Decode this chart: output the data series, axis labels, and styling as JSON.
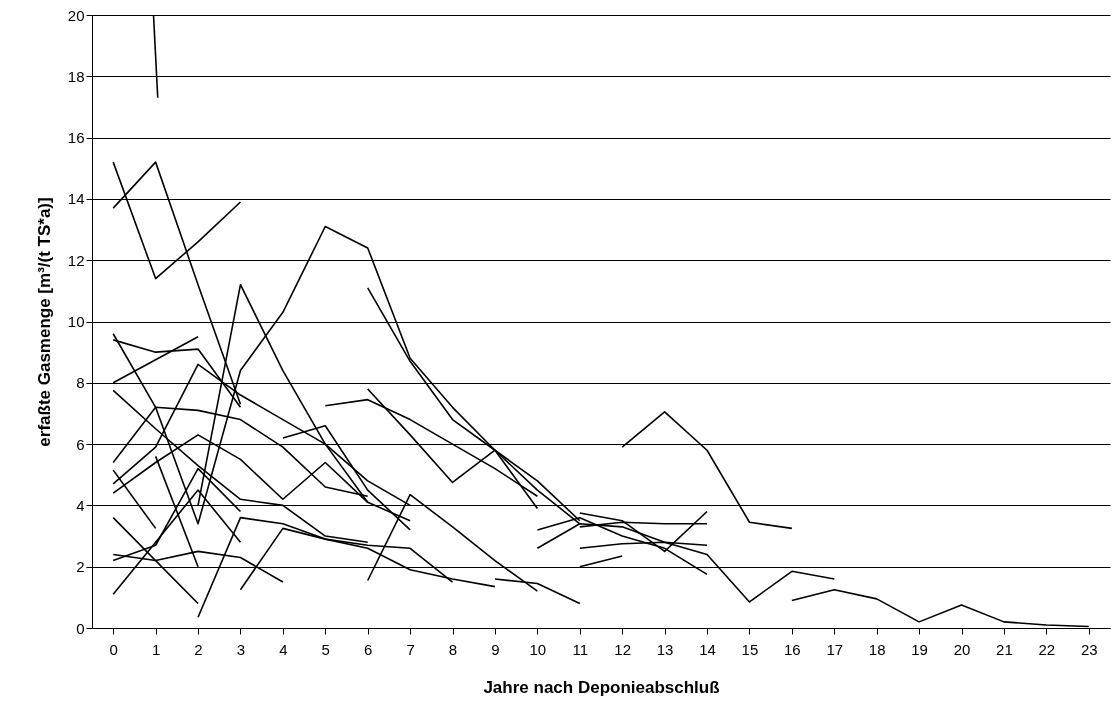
{
  "chart_data": {
    "type": "line",
    "xlabel": "Jahre nach Deponieabschluß",
    "ylabel": "erfaßte Gasmenge [m³/(t TS*a)]",
    "xlim": [
      -0.5,
      23.5
    ],
    "xticks": [
      0,
      1,
      2,
      3,
      4,
      5,
      6,
      7,
      8,
      9,
      10,
      11,
      12,
      13,
      14,
      15,
      16,
      17,
      18,
      19,
      20,
      21,
      22,
      23
    ],
    "ylim": [
      0,
      20
    ],
    "yticks": [
      0,
      2,
      4,
      6,
      8,
      10,
      12,
      14,
      16,
      18,
      20
    ],
    "grid": "y",
    "marker": "none",
    "line_style": "solid",
    "series": [
      {
        "color": "#000000",
        "x": [
          0.95,
          1.05
        ],
        "values": [
          20,
          17.3
        ]
      },
      {
        "color": "#000000",
        "x": [
          0,
          1,
          2,
          3
        ],
        "values": [
          15.2,
          11.4,
          12.6,
          13.9
        ]
      },
      {
        "color": "#000000",
        "x": [
          0,
          1,
          2,
          3
        ],
        "values": [
          13.7,
          15.2,
          11.2,
          7.3
        ]
      },
      {
        "color": "#000000",
        "x": [
          0,
          1,
          2,
          3,
          4,
          5,
          6,
          7,
          8,
          9,
          10,
          11
        ],
        "values": [
          9.6,
          7.2,
          3.4,
          8.4,
          10.3,
          13.1,
          12.4,
          8.8,
          7.2,
          5.8,
          4.5,
          3.4
        ]
      },
      {
        "color": "#000000",
        "x": [
          0,
          1,
          2,
          3
        ],
        "values": [
          9.4,
          9.0,
          9.1,
          7.2
        ]
      },
      {
        "color": "#000000",
        "x": [
          0,
          1,
          2
        ],
        "values": [
          8.0,
          8.75,
          9.5
        ]
      },
      {
        "color": "#000000",
        "x": [
          0,
          1,
          2,
          3,
          4,
          5,
          6
        ],
        "values": [
          7.75,
          6.5,
          5.3,
          4.2,
          4.0,
          3.0,
          2.8
        ]
      },
      {
        "color": "#000000",
        "x": [
          0,
          1,
          2,
          3,
          4,
          5,
          6
        ],
        "values": [
          5.4,
          7.2,
          7.1,
          6.8,
          5.9,
          4.6,
          4.3
        ]
      },
      {
        "color": "#000000",
        "x": [
          0,
          1,
          2,
          3,
          4,
          5,
          6,
          7
        ],
        "values": [
          4.7,
          5.9,
          8.6,
          7.6,
          6.8,
          6.0,
          4.8,
          4.0
        ]
      },
      {
        "color": "#000000",
        "x": [
          0,
          1,
          2,
          3,
          4,
          5,
          6,
          7
        ],
        "values": [
          4.4,
          5.4,
          6.3,
          5.5,
          4.2,
          5.4,
          4.1,
          3.5
        ]
      },
      {
        "color": "#000000",
        "x": [
          0,
          1
        ],
        "values": [
          5.15,
          3.25
        ]
      },
      {
        "color": "#000000",
        "x": [
          0,
          1,
          2,
          3,
          4
        ],
        "values": [
          2.4,
          2.2,
          2.5,
          2.3,
          1.5
        ]
      },
      {
        "color": "#000000",
        "x": [
          0,
          1,
          2,
          3
        ],
        "values": [
          2.2,
          2.7,
          5.2,
          3.8
        ]
      },
      {
        "color": "#000000",
        "x": [
          0,
          1,
          2,
          3
        ],
        "values": [
          1.1,
          2.8,
          4.5,
          2.8
        ]
      },
      {
        "color": "#000000",
        "x": [
          0,
          1,
          2
        ],
        "values": [
          3.6,
          2.2,
          0.8
        ]
      },
      {
        "color": "#000000",
        "x": [
          1,
          2
        ],
        "values": [
          5.6,
          2.0
        ]
      },
      {
        "color": "#000000",
        "x": [
          2,
          3,
          4,
          5,
          6,
          7,
          8
        ],
        "values": [
          0.35,
          3.6,
          3.4,
          2.9,
          2.7,
          2.6,
          1.5
        ]
      },
      {
        "color": "#000000",
        "x": [
          3,
          4,
          5,
          6,
          7,
          8,
          9
        ],
        "values": [
          1.25,
          3.25,
          2.9,
          2.6,
          1.9,
          1.6,
          1.35
        ]
      },
      {
        "color": "#000000",
        "x": [
          2,
          3,
          4,
          5,
          6
        ],
        "values": [
          4.0,
          11.2,
          8.4,
          6.0,
          4.1
        ]
      },
      {
        "color": "#000000",
        "x": [
          4,
          5,
          6,
          7
        ],
        "values": [
          6.2,
          6.6,
          4.5,
          3.2
        ]
      },
      {
        "color": "#000000",
        "x": [
          5,
          6,
          7,
          8,
          9,
          10
        ],
        "values": [
          7.25,
          7.45,
          6.8,
          6.0,
          5.2,
          4.3
        ]
      },
      {
        "color": "#000000",
        "x": [
          6,
          7,
          8,
          9,
          10,
          11
        ],
        "values": [
          11.1,
          8.7,
          6.8,
          5.8,
          4.8,
          3.5
        ]
      },
      {
        "color": "#000000",
        "x": [
          6,
          7,
          8,
          9,
          10
        ],
        "values": [
          7.8,
          6.3,
          4.75,
          5.8,
          3.9
        ]
      },
      {
        "color": "#000000",
        "x": [
          6,
          7,
          8,
          9,
          10
        ],
        "values": [
          1.55,
          4.35,
          3.3,
          2.2,
          1.2
        ]
      },
      {
        "color": "#000000",
        "x": [
          12,
          13,
          14,
          15,
          16
        ],
        "values": [
          5.9,
          7.05,
          5.8,
          3.45,
          3.25
        ]
      },
      {
        "color": "#000000",
        "x": [
          10,
          11,
          12,
          13,
          14,
          15,
          16,
          17
        ],
        "values": [
          2.6,
          3.4,
          3.3,
          2.8,
          2.4,
          0.85,
          1.85,
          1.6
        ]
      },
      {
        "color": "#000000",
        "x": [
          16,
          17,
          18,
          19,
          20,
          21,
          22,
          23
        ],
        "values": [
          0.9,
          1.25,
          0.95,
          0.2,
          0.75,
          0.2,
          0.1,
          0.05
        ]
      },
      {
        "color": "#000000",
        "x": [
          11,
          12,
          13,
          14
        ],
        "values": [
          3.75,
          3.5,
          2.5,
          3.8
        ]
      },
      {
        "color": "#000000",
        "x": [
          11,
          12,
          13,
          14
        ],
        "values": [
          3.3,
          3.45,
          3.4,
          3.4
        ]
      },
      {
        "color": "#000000",
        "x": [
          11,
          12
        ],
        "values": [
          2.0,
          2.35
        ]
      },
      {
        "color": "#000000",
        "x": [
          11,
          12,
          13,
          14
        ],
        "values": [
          2.6,
          2.75,
          2.8,
          2.7
        ]
      },
      {
        "color": "#000000",
        "x": [
          10,
          11,
          12,
          13,
          14
        ],
        "values": [
          3.2,
          3.6,
          3.0,
          2.6,
          1.75
        ]
      },
      {
        "color": "#000000",
        "x": [
          9,
          10,
          11
        ],
        "values": [
          1.6,
          1.45,
          0.8
        ]
      }
    ]
  }
}
